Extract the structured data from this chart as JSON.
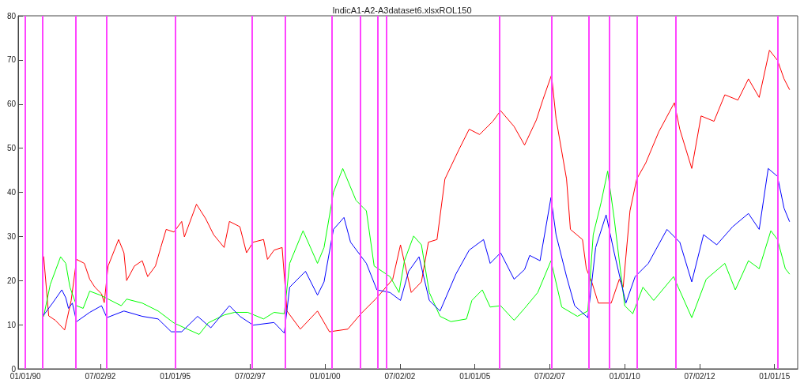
{
  "chart_data": {
    "type": "line",
    "title": "IndicA1-A2-A3dataset6.xlsxROL150",
    "xlim": [
      "1989-10-05",
      "2015-10-10"
    ],
    "ylim": [
      0,
      80
    ],
    "yticks": [
      0,
      10,
      20,
      30,
      40,
      50,
      60,
      70,
      80
    ],
    "xticks": [
      {
        "value": "1990-01-01",
        "label": "01/01/90"
      },
      {
        "value": "1992-07-02",
        "label": "07/02/92"
      },
      {
        "value": "1995-01-01",
        "label": "01/01/95"
      },
      {
        "value": "1997-07-02",
        "label": "07/02/97"
      },
      {
        "value": "2000-01-01",
        "label": "01/01/00"
      },
      {
        "value": "2002-07-02",
        "label": "07/02/02"
      },
      {
        "value": "2005-01-01",
        "label": "01/01/05"
      },
      {
        "value": "2007-07-02",
        "label": "07/02/07"
      },
      {
        "value": "2010-01-01",
        "label": "01/01/10"
      },
      {
        "value": "2012-07-02",
        "label": "07/02/12"
      },
      {
        "value": "2015-01-01",
        "label": "01/01/15"
      }
    ],
    "grid": false,
    "marker": "none",
    "line_style": "solid",
    "series": [
      {
        "color": "#ff0000",
        "x": [
          "1990-08-12",
          "1990-10-12",
          "1991-01-01",
          "1991-04-24",
          "1991-07-13",
          "1991-09-17",
          "1991-12-20",
          "1992-02-24",
          "1992-04-27",
          "1992-07-17",
          "1992-08-19",
          "1992-10-05",
          "1993-02-10",
          "1993-04-16",
          "1993-05-19",
          "1993-08-22",
          "1993-11-25",
          "1994-01-30",
          "1994-05-05",
          "1994-07-09",
          "1994-09-13",
          "1994-12-16",
          "1995-03-21",
          "1995-04-23",
          "1995-09-17",
          "1996-01-08",
          "1996-04-13",
          "1996-08-19",
          "1996-10-23",
          "1997-02-27",
          "1997-05-19",
          "1997-08-08",
          "1997-12-13",
          "1998-01-30",
          "1998-04-20",
          "1998-07-27",
          "1998-09-24",
          "1999-03-06",
          "1999-10-01",
          "2000-02-24",
          "2000-10-05",
          "2001-03-14",
          "2001-09-24",
          "2002-04-05",
          "2002-07-09",
          "2002-11-17",
          "2003-03-21",
          "2003-06-14",
          "2003-09-27",
          "2004-01-01",
          "2004-06-18",
          "2004-10-23",
          "2005-02-27",
          "2005-08-08",
          "2005-11-10",
          "2006-04-24",
          "2006-08-29",
          "2007-01-20",
          "2007-04-08",
          "2007-07-24",
          "2007-09-17",
          "2008-01-23",
          "2008-03-10",
          "2008-08-04",
          "2008-09-20",
          "2008-11-25",
          "2009-02-13",
          "2009-07-20",
          "2009-10-27",
          "2009-12-13",
          "2010-03-06",
          "2010-05-27",
          "2010-09-13",
          "2011-02-20",
          "2011-08-29",
          "2011-11-03",
          "2012-03-28",
          "2012-07-20",
          "2012-12-24",
          "2013-05-05",
          "2013-10-12",
          "2014-02-17",
          "2014-06-28",
          "2014-10-31",
          "2015-02-06",
          "2015-04-27",
          "2015-07-02"
        ],
        "values": [
          25.4,
          12,
          11,
          8.8,
          15.5,
          24.8,
          23.9,
          20.3,
          18.5,
          17,
          15,
          23.3,
          29.3,
          26.3,
          20,
          23.3,
          24.5,
          20.9,
          23.3,
          27.5,
          31.6,
          31,
          33.4,
          29.9,
          37.3,
          34,
          30.4,
          27.5,
          33.4,
          32.2,
          26.3,
          28.7,
          29.3,
          24.8,
          26.9,
          27.5,
          13.1,
          9,
          13.1,
          8.4,
          9,
          12.5,
          16.1,
          20.3,
          28.1,
          17.3,
          19.7,
          28.7,
          29.3,
          43,
          49.6,
          54.3,
          53.1,
          56.1,
          58.5,
          54.9,
          50.7,
          56.4,
          60.9,
          66.6,
          56.7,
          43,
          31.6,
          29.3,
          22.7,
          19.7,
          14.9,
          14.9,
          20.3,
          18.5,
          35.8,
          43,
          46.6,
          53.7,
          60.3,
          54.3,
          45.4,
          57.3,
          56.1,
          62.1,
          60.9,
          65.7,
          61.5,
          72.2,
          69.9,
          65.7,
          63.3
        ]
      },
      {
        "color": "#00ff00",
        "x": [
          "1990-08-12",
          "1990-10-31",
          "1991-03-06",
          "1991-05-08",
          "1991-06-28",
          "1991-09-17",
          "1991-12-06",
          "1992-02-24",
          "1992-07-02",
          "1992-11-07",
          "1993-03-14",
          "1993-05-19",
          "1993-11-25",
          "1994-06-07",
          "1994-12-16",
          "1995-04-23",
          "1995-10-20",
          "1996-02-06",
          "1996-08-19",
          "1996-12-24",
          "1997-06-03",
          "1997-12-13",
          "1998-04-20",
          "1998-08-22",
          "1998-10-27",
          "1999-04-08",
          "1999-10-01",
          "1999-12-20",
          "2000-04-13",
          "2000-08-04",
          "2001-01-12",
          "2001-05-19",
          "2001-08-22",
          "2002-03-03",
          "2002-06-21",
          "2002-08-26",
          "2002-12-16",
          "2003-03-21",
          "2003-06-25",
          "2003-11-03",
          "2004-03-14",
          "2004-09-20",
          "2004-11-25",
          "2005-04-01",
          "2005-07-06",
          "2005-11-10",
          "2006-04-24",
          "2006-08-29",
          "2007-02-06",
          "2007-07-17",
          "2007-11-25",
          "2008-06-03",
          "2008-10-08",
          "2008-12-13",
          "2009-03-18",
          "2009-06-07",
          "2009-08-26",
          "2010-01-01",
          "2010-04-09",
          "2010-08-11",
          "2010-12-20",
          "2011-08-19",
          "2012-03-28",
          "2012-09-20",
          "2013-05-05",
          "2013-09-10",
          "2014-02-17",
          "2014-06-28",
          "2014-11-17",
          "2015-02-06",
          "2015-05-12",
          "2015-07-02"
        ],
        "values": [
          11.9,
          19.1,
          25.4,
          23.9,
          18.5,
          14.3,
          13.7,
          17.6,
          16.7,
          15.5,
          14.3,
          15.8,
          14.9,
          13.1,
          10.4,
          9.3,
          7.8,
          10.4,
          12.2,
          12.8,
          12.8,
          11.3,
          12.8,
          12.5,
          23.9,
          31.3,
          23.9,
          27.5,
          40,
          45.4,
          38.2,
          35.8,
          23.3,
          20.9,
          17.3,
          24.5,
          30.1,
          28.1,
          17.3,
          11.9,
          10.7,
          11.3,
          15.5,
          17.9,
          14,
          14.3,
          11,
          13.7,
          17.3,
          24.5,
          14,
          11.9,
          13.1,
          30.4,
          37.6,
          44.8,
          34,
          14.3,
          12.5,
          18.5,
          15.5,
          20.9,
          11.6,
          20.3,
          23.9,
          17.9,
          24.5,
          22.7,
          31.3,
          29.3,
          22.7,
          21.5
        ]
      },
      {
        "color": "#0000ff",
        "x": [
          "1990-08-12",
          "1990-11-28",
          "1991-03-21",
          "1991-05-08",
          "1991-06-10",
          "1991-07-27",
          "1991-09-17",
          "1992-02-24",
          "1992-07-17",
          "1992-09-20",
          "1993-04-16",
          "1993-11-25",
          "1994-06-07",
          "1994-11-14",
          "1995-03-21",
          "1995-10-01",
          "1996-03-10",
          "1996-10-23",
          "1997-02-27",
          "1997-08-08",
          "1998-04-20",
          "1998-08-22",
          "1998-10-27",
          "1999-05-08",
          "1999-10-01",
          "1999-12-20",
          "2000-04-13",
          "2000-08-19",
          "2000-11-07",
          "2001-05-19",
          "2001-09-24",
          "2002-03-03",
          "2002-07-09",
          "2002-10-16",
          "2003-02-20",
          "2003-06-25",
          "2003-11-03",
          "2004-05-15",
          "2004-10-23",
          "2005-04-16",
          "2005-07-06",
          "2005-11-10",
          "2006-04-24",
          "2006-08-29",
          "2006-10-31",
          "2007-03-06",
          "2007-07-17",
          "2007-09-17",
          "2008-01-23",
          "2008-05-01",
          "2008-10-08",
          "2009-01-12",
          "2009-05-19",
          "2009-08-26",
          "2010-01-15",
          "2010-05-08",
          "2010-10-16",
          "2011-05-31",
          "2011-11-03",
          "2012-03-28",
          "2012-08-19",
          "2013-01-26",
          "2013-08-08",
          "2014-02-17",
          "2014-06-28",
          "2014-10-16",
          "2015-02-06",
          "2015-04-27",
          "2015-07-02"
        ],
        "values": [
          12.2,
          14.9,
          17.9,
          16.1,
          13.7,
          14.9,
          10.7,
          12.8,
          14.3,
          11.6,
          13.1,
          11.9,
          11.3,
          8.4,
          8.4,
          11.9,
          9.3,
          14.3,
          11.9,
          9.9,
          10.5,
          8.1,
          18.5,
          22.1,
          16.7,
          19.7,
          31.6,
          34.3,
          28.7,
          23.9,
          17.9,
          17.3,
          15.5,
          22.1,
          25.4,
          15.5,
          13.1,
          21.5,
          26.9,
          29.3,
          23.9,
          26.3,
          20.3,
          22.5,
          25.7,
          24.5,
          38.8,
          30.4,
          20.9,
          14.3,
          11.6,
          27.5,
          34.9,
          26.3,
          14.9,
          20.9,
          23.9,
          31.6,
          28.7,
          19.7,
          30.4,
          28.1,
          32.2,
          35.2,
          31.6,
          45.4,
          43.6,
          36.4,
          33.4
        ]
      }
    ],
    "ref_lines": [
      {
        "axis": "x",
        "value": "1990-01-01",
        "color": "#ff44ff"
      },
      {
        "axis": "x",
        "value": "1990-08-01",
        "color": "#ff44ff"
      },
      {
        "axis": "x",
        "value": "1991-09-10",
        "color": "#ff44ff"
      },
      {
        "axis": "x",
        "value": "1992-09-20",
        "color": "#ff44ff"
      },
      {
        "axis": "x",
        "value": "1995-01-01",
        "color": "#ff44ff"
      },
      {
        "axis": "x",
        "value": "1997-07-28",
        "color": "#ff44ff"
      },
      {
        "axis": "x",
        "value": "1998-09-01",
        "color": "#ff44ff"
      },
      {
        "axis": "x",
        "value": "2000-03-28",
        "color": "#ff44ff"
      },
      {
        "axis": "x",
        "value": "2001-03-10",
        "color": "#ff44ff"
      },
      {
        "axis": "x",
        "value": "2001-10-05",
        "color": "#ff44ff"
      },
      {
        "axis": "x",
        "value": "2002-01-15",
        "color": "#ff44ff"
      },
      {
        "axis": "x",
        "value": "2005-10-27",
        "color": "#ff44ff"
      },
      {
        "axis": "x",
        "value": "2007-07-24",
        "color": "#ff44ff"
      },
      {
        "axis": "x",
        "value": "2008-10-15",
        "color": "#ff44ff"
      },
      {
        "axis": "x",
        "value": "2009-06-28",
        "color": "#ff44ff"
      },
      {
        "axis": "x",
        "value": "2010-05-27",
        "color": "#ff44ff"
      },
      {
        "axis": "x",
        "value": "2011-09-13",
        "color": "#ff44ff"
      },
      {
        "axis": "x",
        "value": "2015-02-06",
        "color": "#ff44ff"
      }
    ]
  }
}
